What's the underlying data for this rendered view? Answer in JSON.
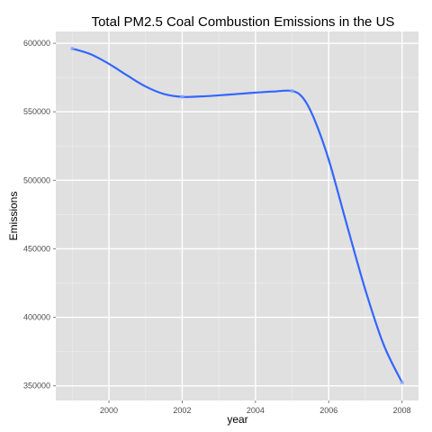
{
  "chart_data": {
    "type": "line",
    "title": "Total PM2.5 Coal Combustion Emissions in the US",
    "xlabel": "year",
    "ylabel": "Emissions",
    "x": [
      1999,
      2002,
      2005,
      2008
    ],
    "series": [
      {
        "values": [
          596100,
          560900,
          565200,
          352500
        ]
      }
    ],
    "curve_samples": [
      [
        1999.0,
        596100
      ],
      [
        1999.5,
        592000
      ],
      [
        2000.0,
        585000
      ],
      [
        2000.5,
        576500
      ],
      [
        2001.0,
        568500
      ],
      [
        2001.5,
        563000
      ],
      [
        2002.0,
        560900
      ],
      [
        2002.5,
        561200
      ],
      [
        2003.0,
        562000
      ],
      [
        2003.5,
        563000
      ],
      [
        2004.0,
        564000
      ],
      [
        2004.5,
        564800
      ],
      [
        2005.0,
        565200
      ],
      [
        2005.3,
        560000
      ],
      [
        2005.6,
        545000
      ],
      [
        2006.0,
        515000
      ],
      [
        2006.5,
        467000
      ],
      [
        2007.0,
        420000
      ],
      [
        2007.5,
        380000
      ],
      [
        2008.0,
        352500
      ]
    ],
    "xticks": [
      2000,
      2002,
      2004,
      2006,
      2008
    ],
    "yticks": [
      350000,
      400000,
      450000,
      500000,
      550000,
      600000
    ],
    "xlim": [
      1998.55,
      2008.45
    ],
    "ylim": [
      339300,
      608600
    ],
    "grid": true,
    "colors": {
      "panel": "#e0e0e0",
      "grid_major": "#ffffff",
      "grid_minor": "#ebebeb",
      "line": "#3366ff",
      "point": "#8aa6ff",
      "tick_text": "#4d4d4d"
    }
  }
}
